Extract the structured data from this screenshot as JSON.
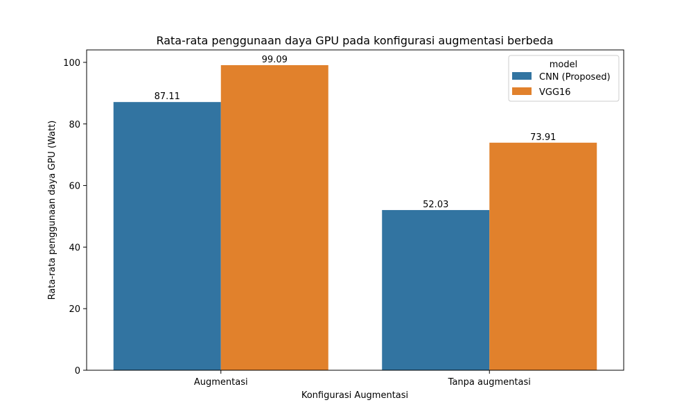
{
  "chart_data": {
    "type": "bar",
    "title": "Rata-rata penggunaan daya GPU pada konfigurasi augmentasi berbeda",
    "xlabel": "Konfigurasi Augmentasi",
    "ylabel": "Rata-rata penggunaan daya GPU (Watt)",
    "categories": [
      "Augmentasi",
      "Tanpa augmentasi"
    ],
    "series": [
      {
        "name": "CNN (Proposed)",
        "values": [
          87.11,
          52.03
        ],
        "color": "#3274a1",
        "labels": [
          "87.11",
          "52.03"
        ]
      },
      {
        "name": "VGG16",
        "values": [
          99.09,
          73.91
        ],
        "color": "#e1812c",
        "labels": [
          "99.09",
          "73.91"
        ]
      }
    ],
    "ylim": [
      0,
      104.04
    ],
    "yticks": [
      0,
      20,
      40,
      60,
      80,
      100
    ],
    "ytick_labels": [
      "0",
      "20",
      "40",
      "60",
      "80",
      "100"
    ],
    "grid": false,
    "legend": {
      "title": "model",
      "placement": "top-right"
    }
  }
}
